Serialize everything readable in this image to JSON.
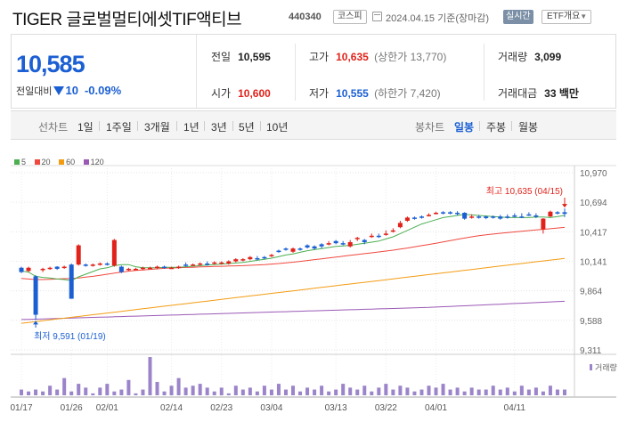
{
  "header": {
    "title": "TIGER 글로벌멀티에셋TIF액티브",
    "code": "440340",
    "market": "코스피",
    "date": "2024.04.15",
    "basis": "기준(장마감)",
    "realtime_label": "실시간",
    "etf_label": "ETF개요",
    "etf_arrow": "▼"
  },
  "quote": {
    "current": "10,585",
    "change_label": "전일대비",
    "change": "10",
    "change_pct": "-0.09%",
    "prev_close_label": "전일",
    "prev_close": "10,595",
    "high_label": "고가",
    "high": "10,635",
    "upper_limit_label": "(상한가",
    "upper_limit": "13,770)",
    "volume_label": "거래량",
    "volume": "3,099",
    "open_label": "시가",
    "open": "10,600",
    "low_label": "저가",
    "low": "10,555",
    "lower_limit_label": "(하한가",
    "lower_limit": "7,420)",
    "amount_label": "거래대금",
    "amount": "33 백만"
  },
  "periods": {
    "candle_label": "선차트",
    "left": [
      "1일",
      "1주일",
      "3개월",
      "1년",
      "3년",
      "5년",
      "10년"
    ],
    "bar_label": "봉차트",
    "right": [
      "일봉",
      "주봉",
      "월봉"
    ],
    "active": "일봉"
  },
  "colors": {
    "up": "#e0221a",
    "down": "#1b5fd3",
    "ma5": "#4caf50",
    "ma20": "#f0483e",
    "ma60": "#f39c12",
    "ma120": "#9b59b6",
    "volume": "#9b84c9"
  },
  "chart_data": {
    "type": "candlestick",
    "legend": [
      "5",
      "20",
      "60",
      "120"
    ],
    "y_ticks": [
      "10,970",
      "10,694",
      "10,417",
      "10,141",
      "9,864",
      "9,588",
      "9,311"
    ],
    "ylim": [
      9311,
      10970
    ],
    "x_ticks": [
      "01/17",
      "01/26",
      "02/01",
      "02/14",
      "02/23",
      "03/04",
      "03/13",
      "03/22",
      "04/01",
      "04/11"
    ],
    "max_label": "최고 10,635 (04/15)",
    "min_label": "최저 9,591 (01/19)",
    "volume_label": "거래량",
    "candles": [
      {
        "o": 10080,
        "c": 10040,
        "h": 10090,
        "l": 10030
      },
      {
        "o": 10050,
        "c": 10080,
        "h": 10090,
        "l": 10040
      },
      {
        "o": 10000,
        "c": 9640,
        "h": 10010,
        "l": 9591
      },
      {
        "o": 10060,
        "c": 10070,
        "h": 10080,
        "l": 10040
      },
      {
        "o": 10070,
        "c": 10080,
        "h": 10090,
        "l": 10060
      },
      {
        "o": 10090,
        "c": 10070,
        "h": 10095,
        "l": 10060
      },
      {
        "o": 10080,
        "c": 10090,
        "h": 10100,
        "l": 10070
      },
      {
        "o": 10110,
        "c": 9790,
        "h": 10120,
        "l": 9790
      },
      {
        "o": 10110,
        "c": 10290,
        "h": 10300,
        "l": 10100
      },
      {
        "o": 10110,
        "c": 10100,
        "h": 10120,
        "l": 10090
      },
      {
        "o": 10100,
        "c": 10110,
        "h": 10120,
        "l": 10090
      },
      {
        "o": 10110,
        "c": 10120,
        "h": 10130,
        "l": 10100
      },
      {
        "o": 10120,
        "c": 10110,
        "h": 10130,
        "l": 10100
      },
      {
        "o": 10100,
        "c": 10340,
        "h": 10350,
        "l": 10090
      },
      {
        "o": 10090,
        "c": 10040,
        "h": 10100,
        "l": 10030
      },
      {
        "o": 10060,
        "c": 10070,
        "h": 10080,
        "l": 10050
      },
      {
        "o": 10070,
        "c": 10070,
        "h": 10080,
        "l": 10060
      },
      {
        "o": 10070,
        "c": 10080,
        "h": 10090,
        "l": 10060
      },
      {
        "o": 10080,
        "c": 10080,
        "h": 10090,
        "l": 10070
      },
      {
        "o": 10080,
        "c": 10090,
        "h": 10100,
        "l": 10070
      },
      {
        "o": 10090,
        "c": 10080,
        "h": 10100,
        "l": 10070
      },
      {
        "o": 10080,
        "c": 10080,
        "h": 10090,
        "l": 10070
      },
      {
        "o": 10080,
        "c": 10090,
        "h": 10100,
        "l": 10070
      },
      {
        "o": 10110,
        "c": 10100,
        "h": 10130,
        "l": 10090
      },
      {
        "o": 10110,
        "c": 10110,
        "h": 10120,
        "l": 10100
      },
      {
        "o": 10110,
        "c": 10120,
        "h": 10130,
        "l": 10100
      },
      {
        "o": 10120,
        "c": 10110,
        "h": 10140,
        "l": 10100
      },
      {
        "o": 10120,
        "c": 10130,
        "h": 10140,
        "l": 10110
      },
      {
        "o": 10120,
        "c": 10130,
        "h": 10140,
        "l": 10110
      },
      {
        "o": 10120,
        "c": 10140,
        "h": 10150,
        "l": 10110
      },
      {
        "o": 10140,
        "c": 10160,
        "h": 10170,
        "l": 10130
      },
      {
        "o": 10150,
        "c": 10160,
        "h": 10170,
        "l": 10140
      },
      {
        "o": 10160,
        "c": 10180,
        "h": 10190,
        "l": 10150
      },
      {
        "o": 10170,
        "c": 10160,
        "h": 10190,
        "l": 10150
      },
      {
        "o": 10180,
        "c": 10170,
        "h": 10190,
        "l": 10160
      },
      {
        "o": 10190,
        "c": 10200,
        "h": 10210,
        "l": 10180
      },
      {
        "o": 10240,
        "c": 10230,
        "h": 10250,
        "l": 10220
      },
      {
        "o": 10260,
        "c": 10250,
        "h": 10270,
        "l": 10240
      },
      {
        "o": 10230,
        "c": 10260,
        "h": 10270,
        "l": 10220
      },
      {
        "o": 10260,
        "c": 10250,
        "h": 10270,
        "l": 10240
      },
      {
        "o": 10290,
        "c": 10270,
        "h": 10300,
        "l": 10260
      },
      {
        "o": 10280,
        "c": 10260,
        "h": 10290,
        "l": 10250
      },
      {
        "o": 10300,
        "c": 10280,
        "h": 10310,
        "l": 10260
      },
      {
        "o": 10300,
        "c": 10310,
        "h": 10330,
        "l": 10290
      },
      {
        "o": 10330,
        "c": 10310,
        "h": 10340,
        "l": 10300
      },
      {
        "o": 10310,
        "c": 10300,
        "h": 10330,
        "l": 10290
      },
      {
        "o": 10280,
        "c": 10320,
        "h": 10340,
        "l": 10270
      },
      {
        "o": 10350,
        "c": 10360,
        "h": 10370,
        "l": 10330
      },
      {
        "o": 10340,
        "c": 10320,
        "h": 10350,
        "l": 10300
      },
      {
        "o": 10370,
        "c": 10380,
        "h": 10400,
        "l": 10360
      },
      {
        "o": 10380,
        "c": 10370,
        "h": 10400,
        "l": 10360
      },
      {
        "o": 10390,
        "c": 10400,
        "h": 10430,
        "l": 10380
      },
      {
        "o": 10420,
        "c": 10430,
        "h": 10450,
        "l": 10410
      },
      {
        "o": 10460,
        "c": 10500,
        "h": 10520,
        "l": 10450
      },
      {
        "o": 10520,
        "c": 10550,
        "h": 10560,
        "l": 10510
      },
      {
        "o": 10550,
        "c": 10540,
        "h": 10560,
        "l": 10530
      },
      {
        "o": 10560,
        "c": 10550,
        "h": 10570,
        "l": 10540
      },
      {
        "o": 10570,
        "c": 10575,
        "h": 10590,
        "l": 10560
      },
      {
        "o": 10590,
        "c": 10595,
        "h": 10605,
        "l": 10580
      },
      {
        "o": 10600,
        "c": 10590,
        "h": 10610,
        "l": 10580
      },
      {
        "o": 10600,
        "c": 10595,
        "h": 10610,
        "l": 10580
      },
      {
        "o": 10595,
        "c": 10585,
        "h": 10610,
        "l": 10570
      },
      {
        "o": 10595,
        "c": 10540,
        "h": 10600,
        "l": 10530
      },
      {
        "o": 10560,
        "c": 10560,
        "h": 10580,
        "l": 10540
      },
      {
        "o": 10560,
        "c": 10555,
        "h": 10575,
        "l": 10540
      },
      {
        "o": 10560,
        "c": 10545,
        "h": 10570,
        "l": 10535
      },
      {
        "o": 10560,
        "c": 10550,
        "h": 10570,
        "l": 10540
      },
      {
        "o": 10560,
        "c": 10540,
        "h": 10575,
        "l": 10530
      },
      {
        "o": 10560,
        "c": 10550,
        "h": 10580,
        "l": 10540
      },
      {
        "o": 10570,
        "c": 10560,
        "h": 10590,
        "l": 10550
      },
      {
        "o": 10560,
        "c": 10555,
        "h": 10590,
        "l": 10545
      },
      {
        "o": 10580,
        "c": 10575,
        "h": 10600,
        "l": 10565
      },
      {
        "o": 10570,
        "c": 10560,
        "h": 10590,
        "l": 10545
      },
      {
        "o": 10440,
        "c": 10540,
        "h": 10545,
        "l": 10400
      },
      {
        "o": 10560,
        "c": 10605,
        "h": 10615,
        "l": 10555
      },
      {
        "o": 10600,
        "c": 10595,
        "h": 10610,
        "l": 10580
      },
      {
        "o": 10600,
        "c": 10585,
        "h": 10635,
        "l": 10555
      }
    ],
    "volumes": [
      3,
      2,
      3,
      2,
      5,
      3,
      9,
      2,
      6,
      4,
      1,
      4,
      6,
      2,
      3,
      8,
      1,
      3,
      20,
      7,
      2,
      5,
      9,
      4,
      5,
      6,
      4,
      2,
      4,
      1,
      5,
      3,
      4,
      2,
      5,
      3,
      6,
      3,
      5,
      2,
      4,
      3,
      5,
      2,
      3,
      6,
      4,
      3,
      5,
      2,
      4,
      6,
      3,
      5,
      4,
      2,
      3,
      5,
      4,
      6,
      3,
      4,
      2,
      4,
      3,
      3,
      5,
      3,
      4,
      2,
      5,
      3,
      4,
      2,
      5,
      3,
      3
    ],
    "ma": {
      "ma5": [
        10050,
        10040,
        10000,
        9990,
        9985,
        9975,
        9970,
        9960,
        9995,
        10020,
        10045,
        10070,
        10080,
        10100,
        10110,
        10110,
        10090,
        10080,
        10080,
        10080,
        10085,
        10085,
        10085,
        10090,
        10095,
        10100,
        10105,
        10110,
        10115,
        10120,
        10125,
        10130,
        10140,
        10150,
        10160,
        10170,
        10185,
        10200,
        10210,
        10225,
        10240,
        10250,
        10260,
        10270,
        10280,
        10285,
        10290,
        10300,
        10310,
        10320,
        10330,
        10350,
        10370,
        10400,
        10430,
        10460,
        10490,
        10510,
        10530,
        10550,
        10560,
        10570,
        10580,
        10575,
        10570,
        10565,
        10560,
        10555,
        10550,
        10550,
        10550,
        10550,
        10555,
        10555,
        10550,
        10560,
        10570
      ],
      "ma20": [
        9980,
        9975,
        9970,
        9970,
        9972,
        9975,
        9978,
        9980,
        9985,
        9992,
        10000,
        10010,
        10020,
        10030,
        10040,
        10048,
        10055,
        10060,
        10065,
        10070,
        10075,
        10078,
        10080,
        10083,
        10085,
        10088,
        10090,
        10092,
        10094,
        10096,
        10098,
        10100,
        10103,
        10106,
        10110,
        10115,
        10120,
        10126,
        10132,
        10140,
        10148,
        10156,
        10164,
        10172,
        10180,
        10188,
        10196,
        10204,
        10212,
        10220,
        10228,
        10236,
        10245,
        10255,
        10265,
        10276,
        10287,
        10298,
        10310,
        10322,
        10334,
        10346,
        10358,
        10370,
        10380,
        10388,
        10396,
        10403,
        10410,
        10416,
        10422,
        10428,
        10434,
        10440,
        10446,
        10452,
        10458
      ],
      "ma60": [
        9560,
        9568,
        9576,
        9584,
        9592,
        9600,
        9608,
        9616,
        9624,
        9632,
        9640,
        9648,
        9656,
        9664,
        9672,
        9680,
        9688,
        9696,
        9704,
        9712,
        9720,
        9728,
        9736,
        9744,
        9752,
        9760,
        9768,
        9776,
        9784,
        9792,
        9800,
        9808,
        9816,
        9824,
        9832,
        9840,
        9848,
        9856,
        9864,
        9872,
        9880,
        9888,
        9896,
        9904,
        9912,
        9920,
        9928,
        9936,
        9944,
        9952,
        9960,
        9968,
        9976,
        9984,
        9992,
        10000,
        10008,
        10016,
        10024,
        10032,
        10040,
        10048,
        10056,
        10064,
        10072,
        10080,
        10088,
        10096,
        10104,
        10112,
        10120,
        10128,
        10136,
        10144,
        10152,
        10160,
        10168
      ],
      "ma120": [
        9595,
        9597,
        9599,
        9601,
        9603,
        9605,
        9607,
        9609,
        9611,
        9613,
        9615,
        9617,
        9619,
        9621,
        9623,
        9625,
        9627,
        9629,
        9631,
        9633,
        9635,
        9637,
        9639,
        9641,
        9643,
        9645,
        9647,
        9649,
        9651,
        9653,
        9655,
        9657,
        9659,
        9661,
        9663,
        9665,
        9667,
        9669,
        9671,
        9673,
        9675,
        9677,
        9679,
        9681,
        9683,
        9685,
        9687,
        9689,
        9691,
        9693,
        9695,
        9697,
        9699,
        9701,
        9703,
        9705,
        9707,
        9709,
        9712,
        9715,
        9718,
        9721,
        9724,
        9727,
        9730,
        9733,
        9736,
        9739,
        9742,
        9745,
        9748,
        9751,
        9754,
        9757,
        9760,
        9763,
        9766
      ]
    }
  }
}
